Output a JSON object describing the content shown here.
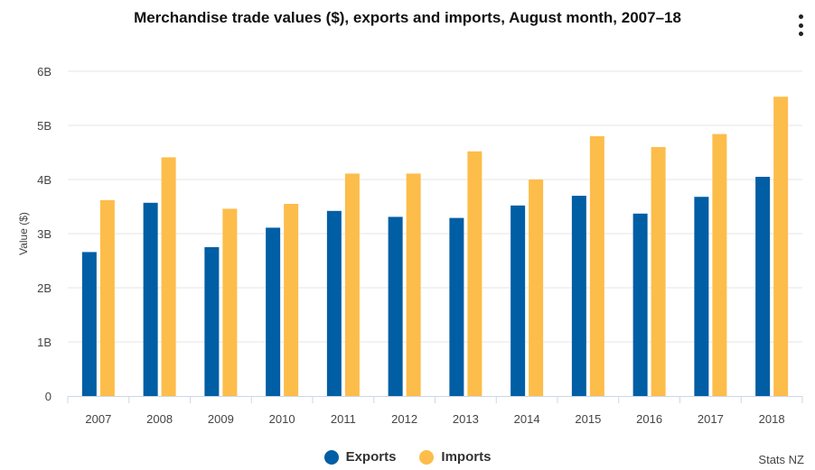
{
  "title": "Merchandise trade values ($), exports and imports, August month, 2007–18",
  "menu": {
    "icon": "more-vertical-icon"
  },
  "credit": "Stats NZ",
  "colors": {
    "exports": "#005ea5",
    "imports": "#fdbd4a",
    "grid": "#e6e6e6",
    "axis": "#ccd6eb"
  },
  "chart_data": {
    "type": "bar",
    "categories": [
      "2007",
      "2008",
      "2009",
      "2010",
      "2011",
      "2012",
      "2013",
      "2014",
      "2015",
      "2016",
      "2017",
      "2018"
    ],
    "series": [
      {
        "name": "Exports",
        "values": [
          2.66,
          3.57,
          2.75,
          3.11,
          3.42,
          3.31,
          3.29,
          3.52,
          3.7,
          3.37,
          3.68,
          4.05
        ]
      },
      {
        "name": "Imports",
        "values": [
          3.62,
          4.41,
          3.46,
          3.55,
          4.11,
          4.11,
          4.52,
          4.0,
          4.8,
          4.6,
          4.84,
          5.53
        ]
      }
    ],
    "title": "Merchandise trade values ($), exports and imports, August month, 2007–18",
    "xlabel": "",
    "ylabel": "Value ($)",
    "ylim": [
      0,
      6
    ],
    "yticks": [
      0,
      1,
      2,
      3,
      4,
      5,
      6
    ],
    "ytick_labels": [
      "0",
      "1B",
      "2B",
      "3B",
      "4B",
      "5B",
      "6B"
    ],
    "grid": true,
    "legend": "bottom-center"
  }
}
